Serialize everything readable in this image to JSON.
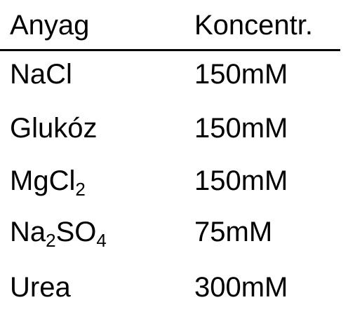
{
  "table": {
    "headers": {
      "substance": "Anyag",
      "concentration": "Koncentr."
    },
    "rows": [
      {
        "substance_parts": [
          "NaCl"
        ],
        "concentration": "150mM"
      },
      {
        "substance_parts": [
          "Glukóz"
        ],
        "concentration": "150mM"
      },
      {
        "substance_parts": [
          "MgCl",
          "2"
        ],
        "concentration": "150mM"
      },
      {
        "substance_parts": [
          "Na",
          "2",
          "SO",
          "4"
        ],
        "concentration": "75mM"
      },
      {
        "substance_parts": [
          "Urea"
        ],
        "concentration": "300mM"
      }
    ]
  }
}
